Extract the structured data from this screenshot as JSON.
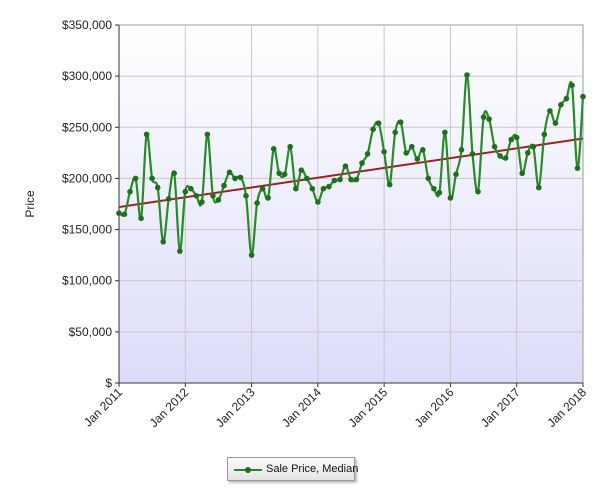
{
  "chart_data": {
    "type": "line",
    "title": "",
    "xlabel": "",
    "ylabel": "Price",
    "ylim": [
      0,
      350000
    ],
    "xlim": [
      "2011-01",
      "2018-01"
    ],
    "y_tick_labels": [
      "$",
      "$50,000",
      "$100,000",
      "$150,000",
      "$200,000",
      "$250,000",
      "$300,000",
      "$350,000"
    ],
    "y_tick_values": [
      0,
      50000,
      100000,
      150000,
      200000,
      250000,
      300000,
      350000
    ],
    "x_tick_labels": [
      "Jan 2011",
      "Jan 2012",
      "Jan 2013",
      "Jan 2014",
      "Jan 2015",
      "Jan 2016",
      "Jan 2017",
      "Jan 2018"
    ],
    "x_tick_values": [
      "2011-01",
      "2012-01",
      "2013-01",
      "2014-01",
      "2015-01",
      "2016-01",
      "2017-01",
      "2018-01"
    ],
    "grid": true,
    "legend_position": "bottom-center",
    "x": [
      "2011-01",
      "2011-02",
      "2011-03",
      "2011-04",
      "2011-05",
      "2011-06",
      "2011-07",
      "2011-08",
      "2011-09",
      "2011-10",
      "2011-11",
      "2011-12",
      "2012-01",
      "2012-02",
      "2012-03",
      "2012-04",
      "2012-05",
      "2012-06",
      "2012-07",
      "2012-08",
      "2012-09",
      "2012-10",
      "2012-11",
      "2012-12",
      "2013-01",
      "2013-02",
      "2013-03",
      "2013-04",
      "2013-05",
      "2013-06",
      "2013-07",
      "2013-08",
      "2013-09",
      "2013-10",
      "2013-11",
      "2013-12",
      "2014-01",
      "2014-02",
      "2014-03",
      "2014-04",
      "2014-05",
      "2014-06",
      "2014-07",
      "2014-08",
      "2014-09",
      "2014-10",
      "2014-11",
      "2014-12",
      "2015-01",
      "2015-02",
      "2015-03",
      "2015-04",
      "2015-05",
      "2015-06",
      "2015-07",
      "2015-08",
      "2015-09",
      "2015-10",
      "2015-11",
      "2015-12",
      "2016-01",
      "2016-02",
      "2016-03",
      "2016-04",
      "2016-05",
      "2016-06",
      "2016-07",
      "2016-08",
      "2016-09",
      "2016-10",
      "2016-11",
      "2016-12",
      "2017-01",
      "2017-02",
      "2017-03",
      "2017-04",
      "2017-05",
      "2017-06",
      "2017-07",
      "2017-08",
      "2017-09",
      "2017-10",
      "2017-11",
      "2017-12",
      "2018-01"
    ],
    "series": [
      {
        "name": "Sale Price, Median",
        "color": "#2a8a2a",
        "values": [
          166000,
          165000,
          187000,
          200000,
          161000,
          243000,
          200000,
          191000,
          138000,
          180000,
          205000,
          129000,
          187000,
          190000,
          183000,
          177000,
          243000,
          183000,
          179000,
          193000,
          206000,
          200000,
          201000,
          183000,
          125000,
          176000,
          190000,
          181000,
          229000,
          205000,
          204000,
          231000,
          190000,
          208000,
          200000,
          190000,
          177000,
          190000,
          192000,
          198000,
          199000,
          212000,
          199000,
          199000,
          215000,
          224000,
          248000,
          254000,
          226000,
          194000,
          245000,
          255000,
          225000,
          231000,
          219000,
          228000,
          200000,
          190000,
          186000,
          245000,
          181000,
          204000,
          228000,
          301000,
          224000,
          187000,
          260000,
          258000,
          231000,
          222000,
          220000,
          238000,
          240000,
          205000,
          225000,
          231000,
          191000,
          243000,
          266000,
          254000,
          272000,
          278000,
          291000,
          210000,
          280000
        ]
      },
      {
        "name": "",
        "role": "trendline",
        "color": "#a02020",
        "x": [
          "2011-01",
          "2018-01"
        ],
        "values": [
          172000,
          239000
        ]
      }
    ]
  },
  "legend": {
    "label": "Sale Price, Median",
    "series_color": "#2a8a2a"
  },
  "colors": {
    "plot_bg_top": "#ffffff",
    "plot_bg_bottom": "#e0e0ff",
    "grid": "#c8c8c8",
    "trend": "#a02020",
    "line": "#2a8a2a",
    "marker": "#1f6f1f"
  }
}
